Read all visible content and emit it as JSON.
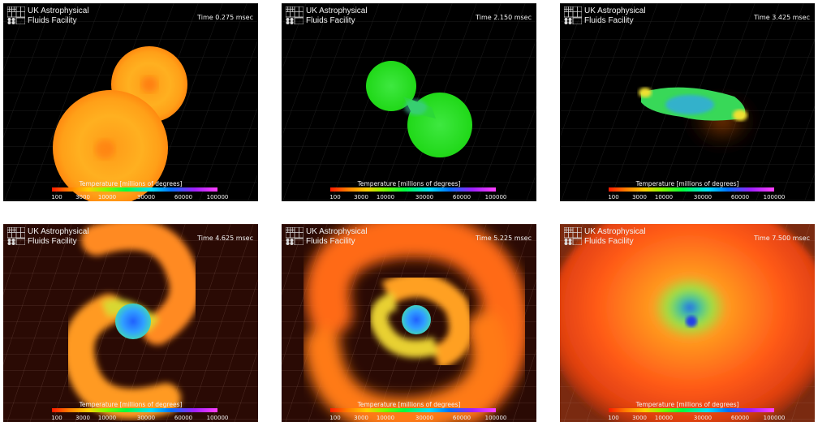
{
  "colorbar": {
    "title": "Temperature [millions of degrees]",
    "ticks": [
      "100",
      "3000",
      "10000",
      "30000",
      "60000",
      "100000"
    ]
  },
  "logo": {
    "line1": "UK Astrophysical",
    "line2": "Fluids Facility"
  },
  "panels": [
    {
      "time": "Time 0.275 msec"
    },
    {
      "time": "Time 2.150 msec"
    },
    {
      "time": "Time 3.425 msec"
    },
    {
      "time": "Time 4.625 msec"
    },
    {
      "time": "Time 5.225 msec"
    },
    {
      "time": "Time 7.500 msec"
    }
  ]
}
